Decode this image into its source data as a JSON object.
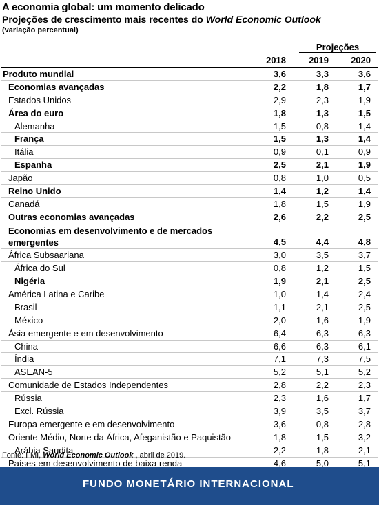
{
  "header": {
    "title": "A economia global: um momento delicado",
    "subtitle_prefix": "Projeções de crescimento mais recentes do ",
    "subtitle_italic": "World Economic Outlook",
    "unit_note": "(variação percentual)"
  },
  "columns": {
    "projections_label": "Projeções",
    "years": [
      "2018",
      "2019",
      "2020"
    ]
  },
  "rows": [
    {
      "label": "Produto mundial",
      "indent": 0,
      "bold": true,
      "values": [
        "3,6",
        "3,3",
        "3,6"
      ]
    },
    {
      "label": "Economias avançadas",
      "indent": 1,
      "bold": true,
      "values": [
        "2,2",
        "1,8",
        "1,7"
      ]
    },
    {
      "label": "Estados Unidos",
      "indent": 1,
      "bold": false,
      "values": [
        "2,9",
        "2,3",
        "1,9"
      ]
    },
    {
      "label": "Área do euro",
      "indent": 1,
      "bold": true,
      "values": [
        "1,8",
        "1,3",
        "1,5"
      ]
    },
    {
      "label": "Alemanha",
      "indent": 2,
      "bold": false,
      "values": [
        "1,5",
        "0,8",
        "1,4"
      ]
    },
    {
      "label": "França",
      "indent": 2,
      "bold": true,
      "values": [
        "1,5",
        "1,3",
        "1,4"
      ]
    },
    {
      "label": "Itália",
      "indent": 2,
      "bold": false,
      "values": [
        "0,9",
        "0,1",
        "0,9"
      ]
    },
    {
      "label": "Espanha",
      "indent": 2,
      "bold": true,
      "values": [
        "2,5",
        "2,1",
        "1,9"
      ]
    },
    {
      "label": "Japão",
      "indent": 1,
      "bold": false,
      "values": [
        "0,8",
        "1,0",
        "0,5"
      ]
    },
    {
      "label": "Reino Unido",
      "indent": 1,
      "bold": true,
      "values": [
        "1,4",
        "1,2",
        "1,4"
      ]
    },
    {
      "label": "Canadá",
      "indent": 1,
      "bold": false,
      "values": [
        "1,8",
        "1,5",
        "1,9"
      ]
    },
    {
      "label": "Outras economias avançadas",
      "indent": 1,
      "bold": true,
      "values": [
        "2,6",
        "2,2",
        "2,5"
      ]
    },
    {
      "label": "Economias em desenvolvimento e de mercados emergentes",
      "indent": 1,
      "bold": true,
      "double": true,
      "values": [
        "4,5",
        "4,4",
        "4,8"
      ]
    },
    {
      "label": "África Subsaariana",
      "indent": 1,
      "bold": false,
      "values": [
        "3,0",
        "3,5",
        "3,7"
      ]
    },
    {
      "label": "África do Sul",
      "indent": 2,
      "bold": false,
      "values": [
        "0,8",
        "1,2",
        "1,5"
      ]
    },
    {
      "label": "Nigéria",
      "indent": 2,
      "bold": true,
      "values": [
        "1,9",
        "2,1",
        "2,5"
      ]
    },
    {
      "label": "América Latina e Caribe",
      "indent": 1,
      "bold": false,
      "values": [
        "1,0",
        "1,4",
        "2,4"
      ]
    },
    {
      "label": "Brasil",
      "indent": 2,
      "bold": false,
      "values": [
        "1,1",
        "2,1",
        "2,5"
      ]
    },
    {
      "label": "México",
      "indent": 2,
      "bold": false,
      "values": [
        "2,0",
        "1,6",
        "1,9"
      ]
    },
    {
      "label": "Ásia emergente e em desenvolvimento",
      "indent": 1,
      "bold": false,
      "values": [
        "6,4",
        "6,3",
        "6,3"
      ]
    },
    {
      "label": "China",
      "indent": 2,
      "bold": false,
      "values": [
        "6,6",
        "6,3",
        "6,1"
      ]
    },
    {
      "label": "Índia",
      "indent": 2,
      "bold": false,
      "values": [
        "7,1",
        "7,3",
        "7,5"
      ]
    },
    {
      "label": "ASEAN-5",
      "indent": 2,
      "bold": false,
      "values": [
        "5,2",
        "5,1",
        "5,2"
      ]
    },
    {
      "label": "Comunidade de Estados Independentes",
      "indent": 1,
      "bold": false,
      "values": [
        "2,8",
        "2,2",
        "2,3"
      ]
    },
    {
      "label": "Rússia",
      "indent": 2,
      "bold": false,
      "values": [
        "2,3",
        "1,6",
        "1,7"
      ]
    },
    {
      "label": "Excl. Rússia",
      "indent": 2,
      "bold": false,
      "values": [
        "3,9",
        "3,5",
        "3,7"
      ]
    },
    {
      "label": "Europa emergente e em desenvolvimento",
      "indent": 1,
      "bold": false,
      "values": [
        "3,6",
        "0,8",
        "2,8"
      ]
    },
    {
      "label": "Oriente Médio, Norte da África, Afeganistão e Paquistão",
      "indent": 1,
      "bold": false,
      "values": [
        "1,8",
        "1,5",
        "3,2"
      ]
    },
    {
      "label": "Arábia Saudita",
      "indent": 2,
      "bold": false,
      "values": [
        "2,2",
        "1,8",
        "2,1"
      ]
    },
    {
      "label": "Países em desenvolvimento de baixa renda",
      "indent": 1,
      "bold": false,
      "values": [
        "4,6",
        "5,0",
        "5,1"
      ]
    }
  ],
  "source": {
    "prefix": "Fonte: FMI, ",
    "italic": "World Economic Outlook",
    "suffix": " , abril de 2019."
  },
  "footer": {
    "org_name": "FUNDO MONETÁRIO INTERNACIONAL",
    "colors": {
      "band": "#1f4d8c",
      "text": "#ffffff"
    }
  }
}
